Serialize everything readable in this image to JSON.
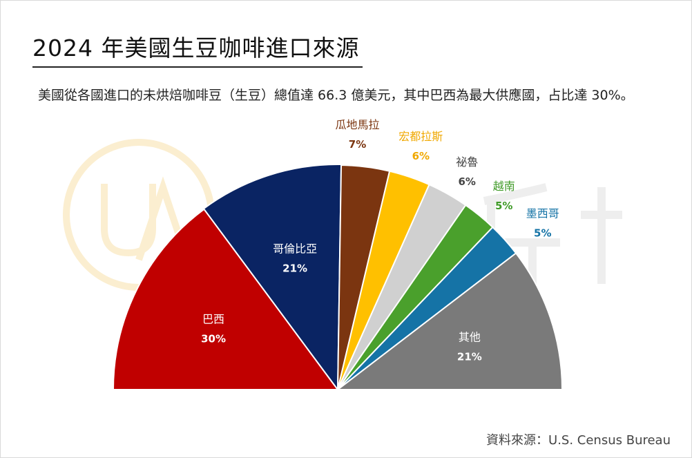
{
  "title": "2024 年美國生豆咖啡進口來源",
  "subtitle": "美國從各國進口的未烘焙咖啡豆（生豆）總值達 66.3 億美元，其中巴西為最大供應國，占比達 30%。",
  "source": "資料來源：U.S. Census Bureau",
  "chart_data": {
    "type": "pie",
    "shape": "semicircle",
    "title": "2024 年美國生豆咖啡進口來源",
    "slices": [
      {
        "label": "巴西",
        "value": 30,
        "value_label": "30%",
        "color": "#c00000",
        "label_color": "#ffffff",
        "label_mode": "inside"
      },
      {
        "label": "哥倫比亞",
        "value": 21,
        "value_label": "21%",
        "color": "#0a2463",
        "label_color": "#ffffff",
        "label_mode": "inside"
      },
      {
        "label": "瓜地馬拉",
        "value": 7,
        "value_label": "7%",
        "color": "#7b3510",
        "label_color": "#7b3510",
        "label_mode": "outside"
      },
      {
        "label": "宏都拉斯",
        "value": 6,
        "value_label": "6%",
        "color": "#ffc000",
        "label_color": "#f0a800",
        "label_mode": "outside"
      },
      {
        "label": "祕魯",
        "value": 6,
        "value_label": "6%",
        "color": "#d0d0d0",
        "label_color": "#444444",
        "label_mode": "outside"
      },
      {
        "label": "越南",
        "value": 5,
        "value_label": "5%",
        "color": "#4aa02c",
        "label_color": "#3f9a27",
        "label_mode": "outside"
      },
      {
        "label": "墨西哥",
        "value": 5,
        "value_label": "5%",
        "color": "#1573a6",
        "label_color": "#1573a6",
        "label_mode": "outside"
      },
      {
        "label": "其他",
        "value": 21,
        "value_label": "21%",
        "color": "#7a7a7a",
        "label_color": "#ffffff",
        "label_mode": "inside"
      }
    ]
  }
}
